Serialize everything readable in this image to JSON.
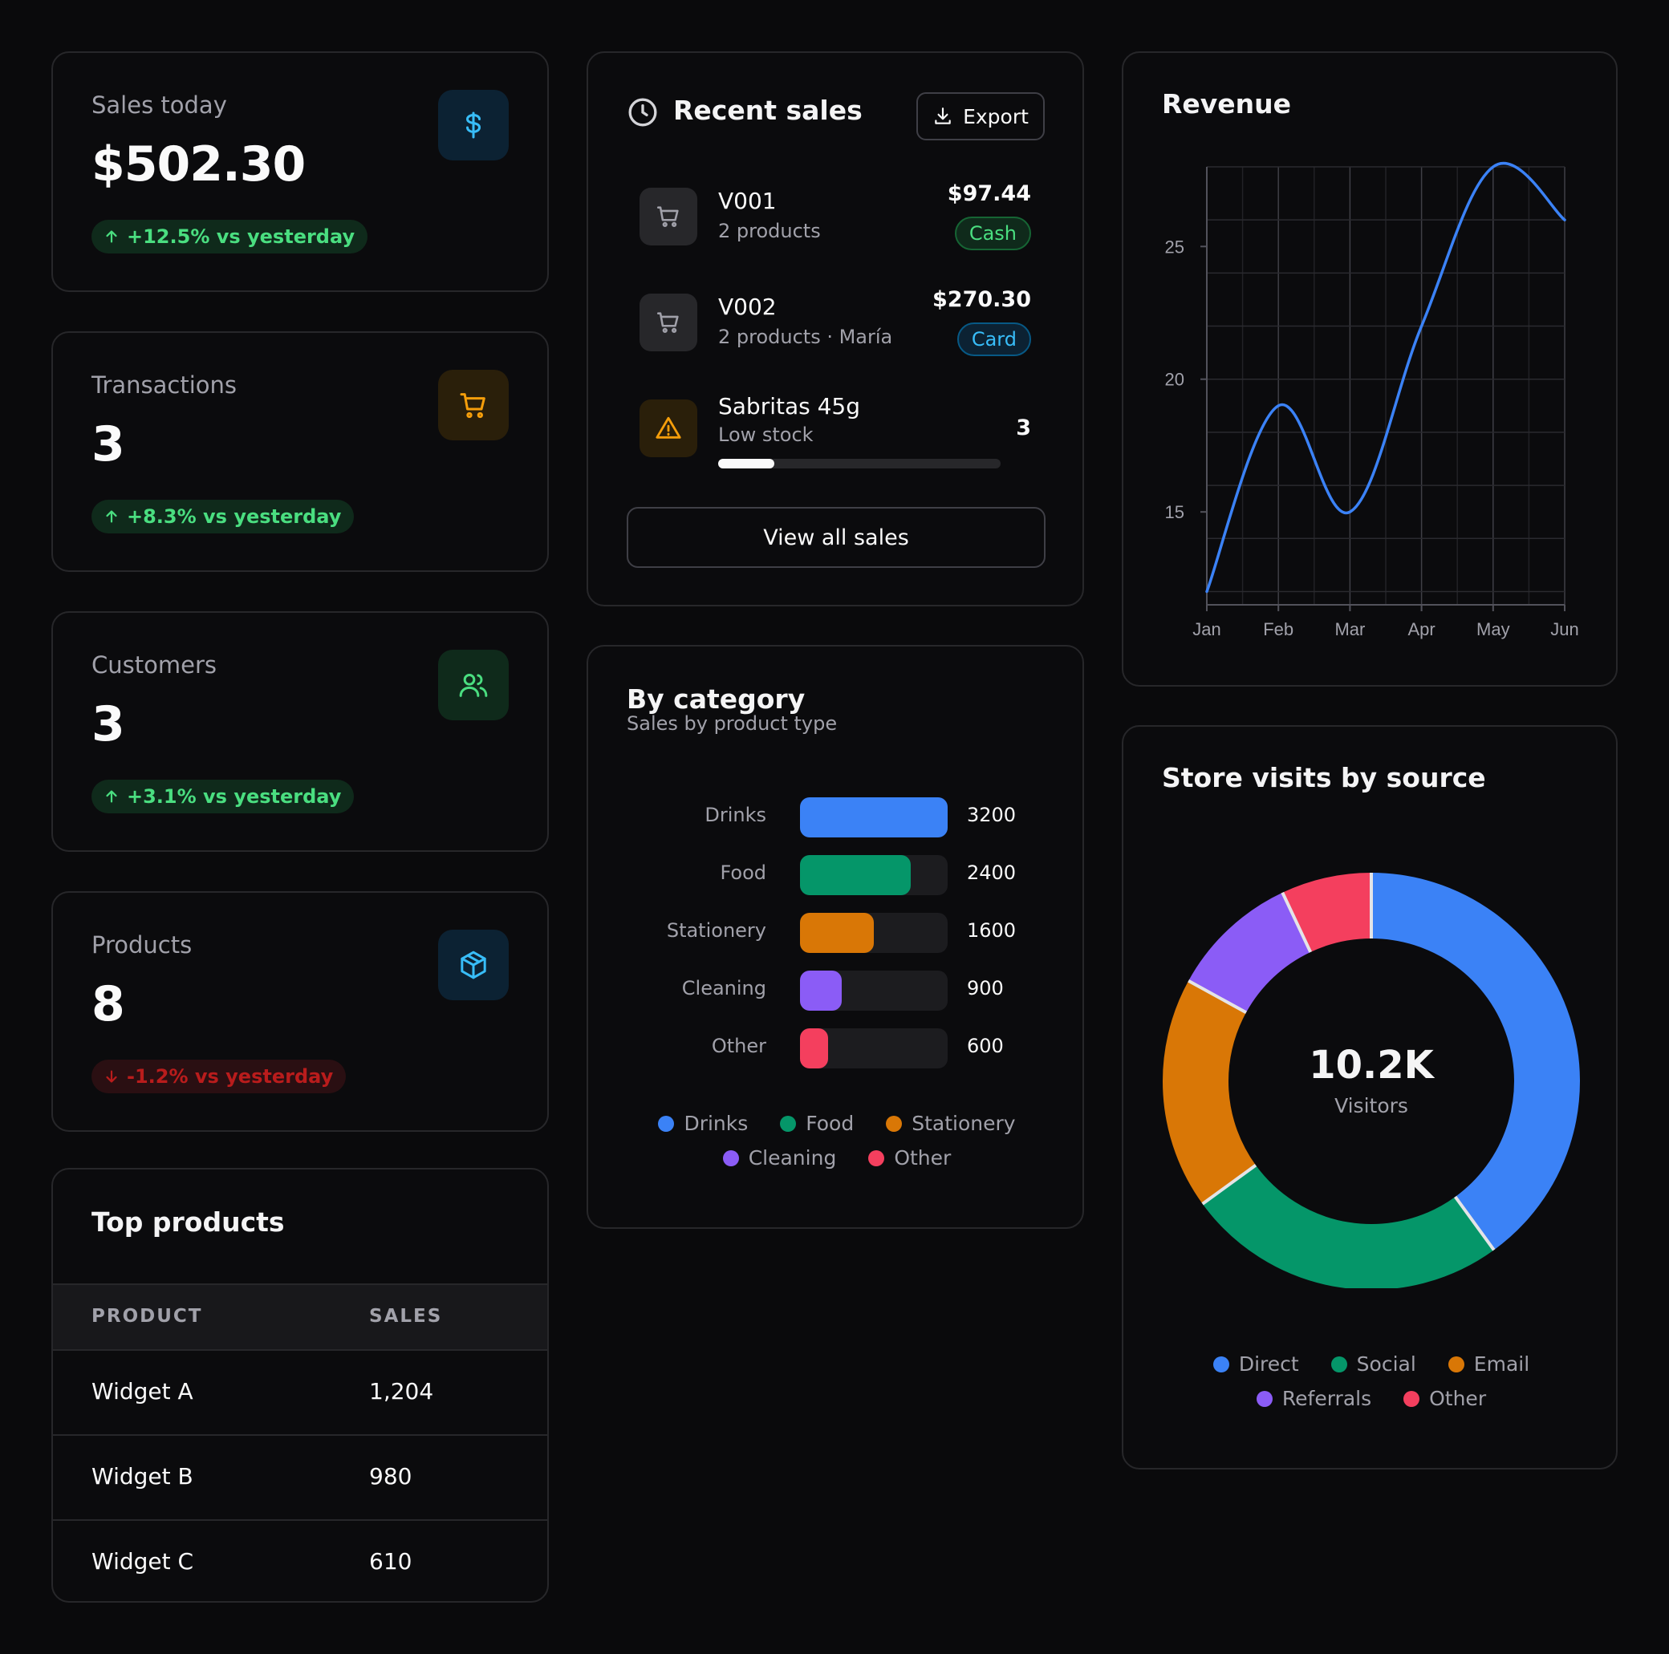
{
  "stats": [
    {
      "label": "Sales today",
      "value": "$502.30",
      "delta": "+12.5% vs yesterday",
      "trend": "up",
      "icon": "dollar-icon",
      "color": "#38bdf8"
    },
    {
      "label": "Transactions",
      "value": "3",
      "delta": "+8.3% vs yesterday",
      "trend": "up",
      "icon": "cart-icon",
      "color": "#f59e0b"
    },
    {
      "label": "Customers",
      "value": "3",
      "delta": "+3.1% vs yesterday",
      "trend": "up",
      "icon": "users-icon",
      "color": "#4ade80"
    },
    {
      "label": "Products",
      "value": "8",
      "delta": "-1.2% vs yesterday",
      "trend": "down",
      "icon": "box-icon",
      "color": "#38bdf8"
    }
  ],
  "recent_sales": {
    "title": "Recent sales",
    "export_label": "Export",
    "items": [
      {
        "name": "V001",
        "sub": "2 products",
        "amount": "$97.44",
        "method": "Cash"
      },
      {
        "name": "V002",
        "sub": "2 products · María",
        "amount": "$270.30",
        "method": "Card"
      }
    ],
    "alert": {
      "name": "Sabritas 45g",
      "sub": "Low stock",
      "count": "3",
      "level": 0.2
    },
    "view_all_label": "View all sales"
  },
  "top_products": {
    "title": "Top products",
    "columns": [
      "PRODUCT",
      "SALES"
    ],
    "rows": [
      {
        "product": "Widget A",
        "sales": "1,204"
      },
      {
        "product": "Widget B",
        "sales": "980"
      },
      {
        "product": "Widget C",
        "sales": "610"
      }
    ]
  },
  "colors": {
    "blue": "#3b82f6",
    "green": "#059669",
    "orange": "#d97706",
    "purple": "#8b5cf6",
    "red": "#f43f5e"
  },
  "chart_data": [
    {
      "type": "line",
      "title": "Revenue",
      "x": [
        "Jan",
        "Feb",
        "Mar",
        "Apr",
        "May",
        "Jun"
      ],
      "series": [
        {
          "values": [
            12,
            19,
            15,
            22,
            28,
            26
          ]
        }
      ],
      "yticks": [
        "15",
        "20",
        "25"
      ],
      "ylim": [
        11.5,
        28
      ],
      "grid": true
    },
    {
      "type": "bar",
      "title": "By category",
      "subtitle": "Sales by product type",
      "categories": [
        "Drinks",
        "Food",
        "Stationery",
        "Cleaning",
        "Other"
      ],
      "values": [
        3200,
        2400,
        1600,
        900,
        600
      ],
      "xlim": [
        0,
        3200
      ],
      "legend": "bottom"
    },
    {
      "type": "pie",
      "title": "Store visits by source",
      "center_value": "10.2K",
      "center_label": "Visitors",
      "categories": [
        "Direct",
        "Social",
        "Email",
        "Referrals",
        "Other"
      ],
      "values": [
        40,
        25,
        18,
        10,
        7
      ],
      "legend": "bottom"
    }
  ]
}
